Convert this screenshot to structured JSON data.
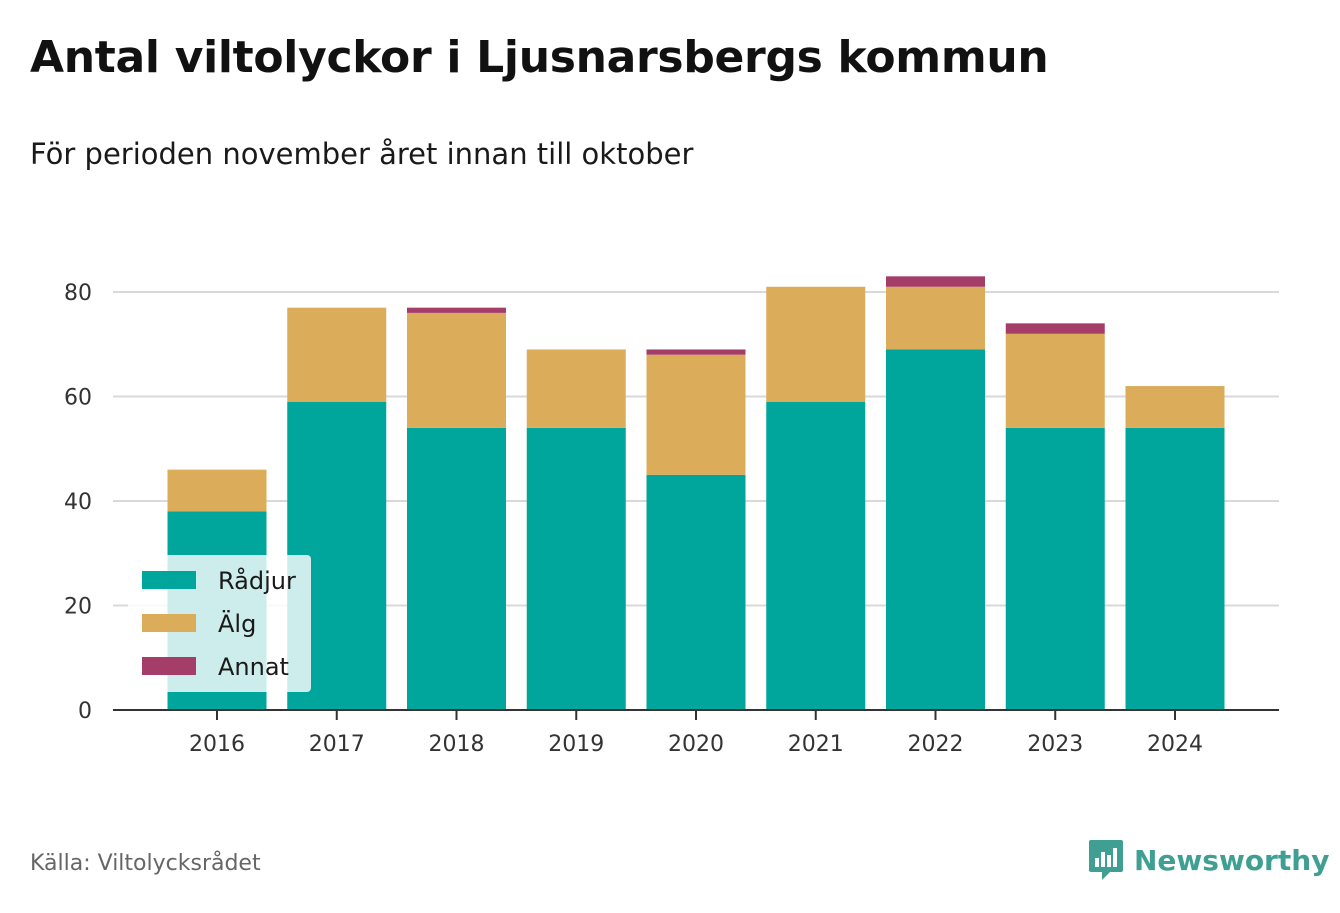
{
  "title": "Antal viltolyckor i Ljusnarsbergs kommun",
  "subtitle": "För perioden november året innan till oktober",
  "source": "Källa: Viltolycksrådet",
  "brand": {
    "name": "Newsworthy",
    "icon": "newsworthy-logo-icon",
    "color": "#3f9f93"
  },
  "chart_data": {
    "type": "bar",
    "stacked": true,
    "categories": [
      "2016",
      "2017",
      "2018",
      "2019",
      "2020",
      "2021",
      "2022",
      "2023",
      "2024"
    ],
    "series": [
      {
        "name": "Rådjur",
        "color": "#00a59b",
        "values": [
          38,
          59,
          54,
          54,
          45,
          59,
          69,
          54,
          54
        ]
      },
      {
        "name": "Älg",
        "color": "#dbac5a",
        "values": [
          8,
          18,
          22,
          15,
          23,
          22,
          12,
          18,
          8
        ]
      },
      {
        "name": "Annat",
        "color": "#a53d69",
        "values": [
          0,
          0,
          1,
          0,
          1,
          0,
          2,
          2,
          0
        ]
      }
    ],
    "yticks": [
      "0",
      "20",
      "40",
      "60",
      "80"
    ],
    "ylim": [
      0,
      90
    ],
    "grid": true,
    "legend": "bottom-left"
  }
}
